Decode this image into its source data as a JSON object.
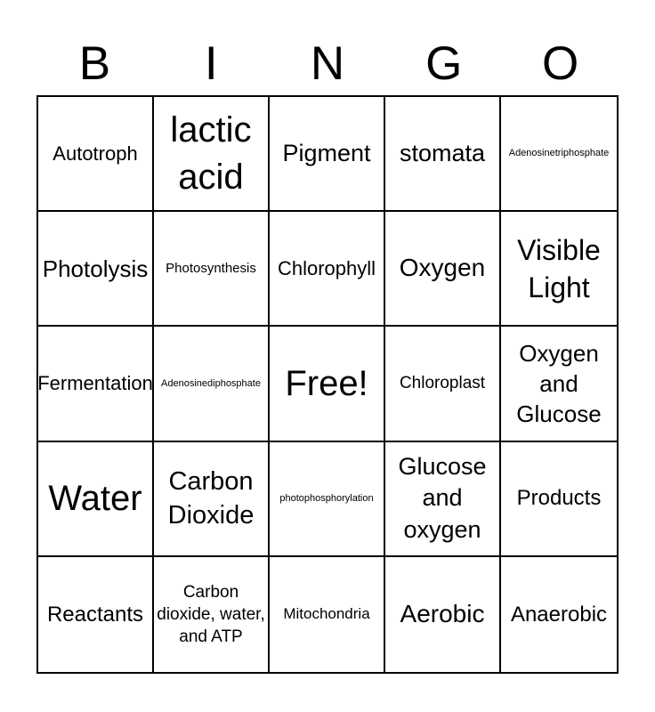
{
  "page": {
    "background_color": "#ffffff",
    "text_color": "#000000",
    "grid_line_color": "#000000"
  },
  "header": {
    "letters": [
      "B",
      "I",
      "N",
      "G",
      "O"
    ]
  },
  "grid": {
    "rows": 5,
    "cols": 5,
    "cells": [
      {
        "label": "Autotroph"
      },
      {
        "label": "lactic acid"
      },
      {
        "label": "Pigment"
      },
      {
        "label": "stomata"
      },
      {
        "label": "Adenosinetriphosphate"
      },
      {
        "label": "Photolysis"
      },
      {
        "label": "Photosynthesis"
      },
      {
        "label": "Chlorophyll"
      },
      {
        "label": "Oxygen"
      },
      {
        "label": "Visible Light"
      },
      {
        "label": "Fermentation"
      },
      {
        "label": "Adenosinediphosphate"
      },
      {
        "label": "Free!"
      },
      {
        "label": "Chloroplast"
      },
      {
        "label": "Oxygen and Glucose"
      },
      {
        "label": "Water"
      },
      {
        "label": "Carbon Dioxide"
      },
      {
        "label": "photophosphorylation"
      },
      {
        "label": "Glucose and oxygen"
      },
      {
        "label": "Products"
      },
      {
        "label": "Reactants"
      },
      {
        "label": "Carbon dioxide, water, and ATP"
      },
      {
        "label": "Mitochondria"
      },
      {
        "label": "Aerobic"
      },
      {
        "label": "Anaerobic"
      }
    ]
  }
}
